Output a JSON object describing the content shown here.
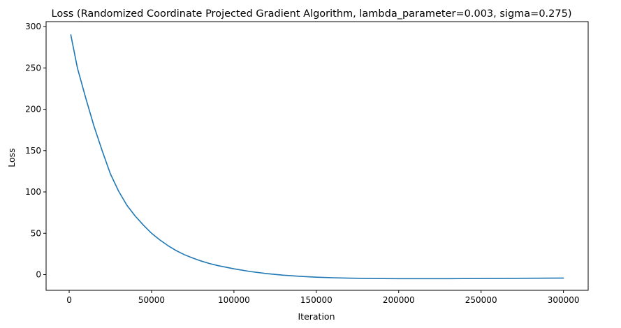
{
  "chart_data": {
    "type": "line",
    "title": "Loss (Randomized Coordinate Projected Gradient Algorithm, lambda_parameter=0.003, sigma=0.275)",
    "xlabel": "Iteration",
    "ylabel": "Loss",
    "xlim": [
      -14000,
      315000
    ],
    "ylim": [
      -19,
      306
    ],
    "xticks": [
      0,
      50000,
      100000,
      150000,
      200000,
      250000,
      300000
    ],
    "xtick_labels": [
      "0",
      "50000",
      "100000",
      "150000",
      "200000",
      "250000",
      "300000"
    ],
    "yticks": [
      0,
      50,
      100,
      150,
      200,
      250,
      300
    ],
    "ytick_labels": [
      "0",
      "50",
      "100",
      "150",
      "200",
      "250",
      "300"
    ],
    "grid": false,
    "series": [
      {
        "color": "#1f77b4",
        "x": [
          1000,
          5000,
          10000,
          15000,
          20000,
          25000,
          30000,
          35000,
          40000,
          45000,
          50000,
          55000,
          60000,
          65000,
          70000,
          75000,
          80000,
          85000,
          90000,
          95000,
          100000,
          110000,
          120000,
          130000,
          140000,
          150000,
          160000,
          170000,
          180000,
          190000,
          200000,
          210000,
          220000,
          230000,
          240000,
          250000,
          260000,
          270000,
          280000,
          290000,
          300000
        ],
        "y": [
          290,
          250,
          214,
          180,
          150,
          122,
          101,
          84,
          71,
          60,
          50,
          42,
          35,
          29,
          24,
          20,
          16.5,
          13.5,
          11,
          9,
          7,
          3.7,
          1.2,
          -0.7,
          -2.1,
          -3.1,
          -3.8,
          -4.3,
          -4.6,
          -4.8,
          -4.9,
          -4.9,
          -4.9,
          -4.9,
          -4.8,
          -4.7,
          -4.6,
          -4.5,
          -4.4,
          -4.3,
          -4.2
        ]
      }
    ]
  }
}
